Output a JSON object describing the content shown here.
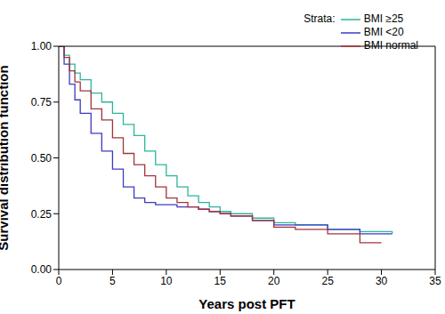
{
  "chart_data": {
    "type": "line",
    "xlabel": "Years post PFT",
    "ylabel": "Survival distribution function",
    "legend_title": "Strata:",
    "legend": "upper right",
    "line_style": "step",
    "x": [
      0,
      0.5,
      1,
      1.5,
      2,
      3,
      4,
      5,
      6,
      7,
      8,
      9,
      10,
      11,
      12,
      13,
      14,
      15,
      16,
      18,
      20,
      22,
      25,
      28,
      30,
      31
    ],
    "xlim": [
      0,
      35
    ],
    "xticks": [
      0,
      5,
      10,
      15,
      20,
      25,
      30,
      35
    ],
    "ylim": [
      0,
      1
    ],
    "yticks": [
      {
        "value": 0,
        "label": "0.00"
      },
      {
        "value": 0.25,
        "label": "0.25"
      },
      {
        "value": 0.5,
        "label": "0.50"
      },
      {
        "value": 0.75,
        "label": "0.75"
      },
      {
        "value": 1,
        "label": "1.00"
      }
    ],
    "series": [
      {
        "name": "BMI ≥25",
        "color": "#2db49c",
        "values": [
          1.0,
          0.96,
          0.92,
          0.88,
          0.85,
          0.79,
          0.75,
          0.7,
          0.65,
          0.6,
          0.53,
          0.47,
          0.42,
          0.37,
          0.33,
          0.3,
          0.28,
          0.26,
          0.25,
          0.23,
          0.21,
          0.2,
          0.18,
          0.17,
          0.17,
          0.16
        ]
      },
      {
        "name": "BMI <20",
        "color": "#3b3bc4",
        "values": [
          1.0,
          0.92,
          0.83,
          0.76,
          0.7,
          0.61,
          0.53,
          0.45,
          0.37,
          0.32,
          0.3,
          0.29,
          0.29,
          0.28,
          0.28,
          0.27,
          0.26,
          0.25,
          0.24,
          0.22,
          0.2,
          0.2,
          0.18,
          0.16,
          0.16,
          0.16
        ]
      },
      {
        "name": "BMI normal",
        "color": "#a3343c",
        "values": [
          1.0,
          0.95,
          0.89,
          0.84,
          0.8,
          0.72,
          0.67,
          0.59,
          0.52,
          0.47,
          0.42,
          0.37,
          0.32,
          0.3,
          0.28,
          0.27,
          0.26,
          0.25,
          0.24,
          0.22,
          0.19,
          0.18,
          0.16,
          0.12,
          0.12,
          null
        ]
      }
    ]
  }
}
